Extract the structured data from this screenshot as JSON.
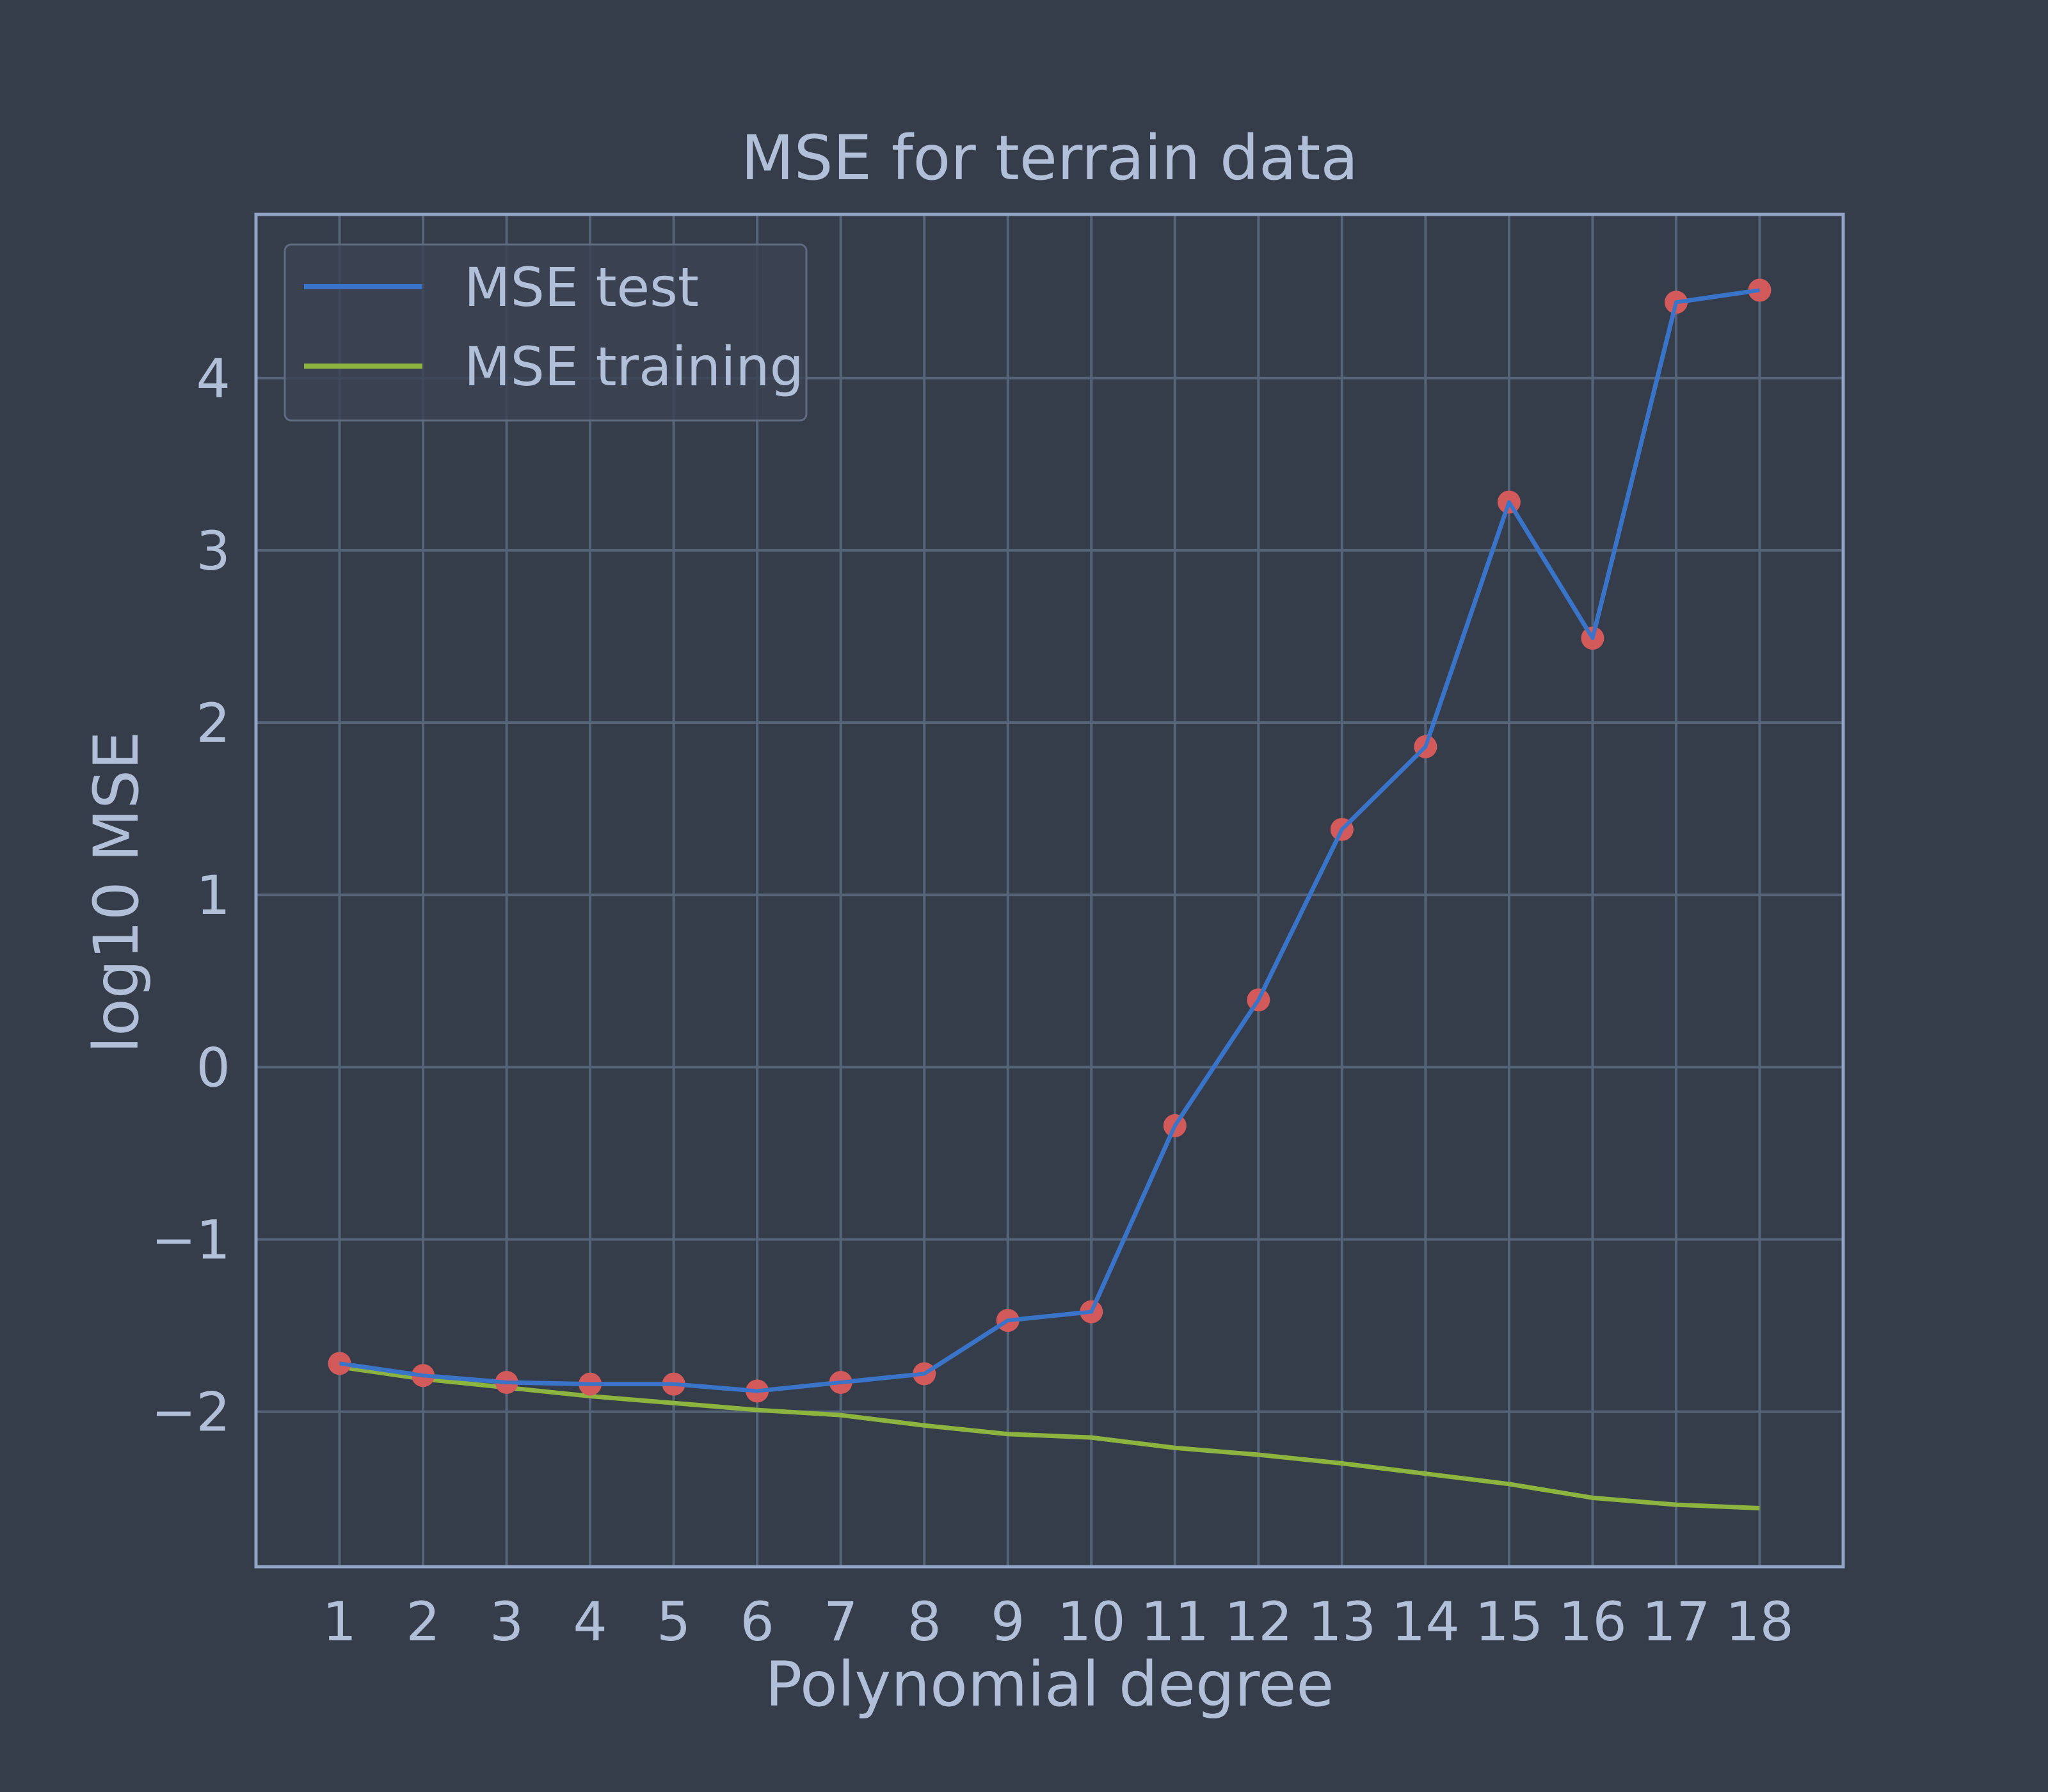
{
  "colors": {
    "background": "#353c4a",
    "grid": "#556478",
    "frame": "#93a5c7",
    "text": "#b2bfd8",
    "test_line": "#3a74c8",
    "train_line": "#8db43e",
    "markers": "#d35a5a"
  },
  "chart_data": {
    "type": "line",
    "title": "MSE for terrain data",
    "xlabel": "Polynomial degree",
    "ylabel": "log10 MSE",
    "x": [
      1,
      2,
      3,
      4,
      5,
      6,
      7,
      8,
      9,
      10,
      11,
      12,
      13,
      14,
      15,
      16,
      17,
      18
    ],
    "xlim": [
      0,
      19
    ],
    "ylim": [
      -2.9,
      4.95
    ],
    "yticks": [
      -2,
      -1,
      0,
      1,
      2,
      3,
      4
    ],
    "ytick_labels": [
      "−2",
      "−1",
      "0",
      "1",
      "2",
      "3",
      "4"
    ],
    "grid": true,
    "legend_position": "top-left",
    "series": [
      {
        "name": "MSE test",
        "color": "#3a74c8",
        "markers": true,
        "values": [
          -1.72,
          -1.79,
          -1.83,
          -1.84,
          -1.84,
          -1.88,
          -1.83,
          -1.78,
          -1.47,
          -1.42,
          -0.34,
          0.39,
          1.38,
          1.86,
          3.28,
          2.49,
          4.44,
          4.51
        ]
      },
      {
        "name": "MSE training",
        "color": "#8db43e",
        "markers": false,
        "values": [
          -1.74,
          -1.81,
          -1.86,
          -1.91,
          -1.95,
          -1.99,
          -2.02,
          -2.08,
          -2.13,
          -2.15,
          -2.21,
          -2.25,
          -2.3,
          -2.36,
          -2.42,
          -2.5,
          -2.54,
          -2.56
        ]
      }
    ]
  }
}
